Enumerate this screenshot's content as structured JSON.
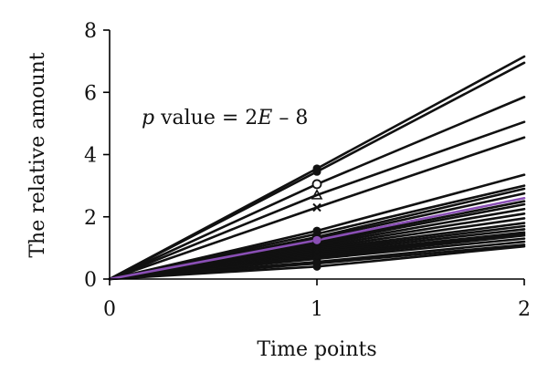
{
  "chart_data": {
    "type": "line",
    "title": "",
    "xlabel": "Time points",
    "ylabel": "The relative amount",
    "annotation": {
      "p_italic": "p",
      "rest": " value = 2",
      "e_italic": "E",
      "tail": " – 8"
    },
    "x": [
      0,
      1,
      2
    ],
    "xlim": [
      0,
      2
    ],
    "ylim": [
      0,
      8
    ],
    "xticks": [
      "0",
      "1",
      "2"
    ],
    "yticks": [
      "0",
      "2",
      "4",
      "6",
      "8"
    ],
    "grid": false,
    "colors": {
      "default": "#111111",
      "highlight": "#8a4fb5",
      "axis": "#000000"
    },
    "series": [
      {
        "values": [
          0,
          3.55,
          7.15
        ],
        "marker": "circle"
      },
      {
        "values": [
          0,
          3.45,
          6.95
        ],
        "marker": "circle"
      },
      {
        "values": [
          0,
          3.05,
          5.85
        ],
        "marker": "open-circle"
      },
      {
        "values": [
          0,
          2.7,
          5.05
        ],
        "marker": "triangle"
      },
      {
        "values": [
          0,
          2.3,
          4.55
        ],
        "marker": "x"
      },
      {
        "values": [
          0,
          1.55,
          3.35
        ],
        "marker": "circle"
      },
      {
        "values": [
          0,
          1.45,
          3.0
        ],
        "marker": "triangle"
      },
      {
        "values": [
          0,
          1.35,
          2.9
        ],
        "marker": "x"
      },
      {
        "values": [
          0,
          1.3,
          2.75
        ],
        "marker": "circle"
      },
      {
        "values": [
          0,
          1.25,
          2.6
        ],
        "marker": "circle",
        "highlight": true
      },
      {
        "values": [
          0,
          1.2,
          2.5
        ],
        "marker": "circle"
      },
      {
        "values": [
          0,
          1.15,
          2.4
        ],
        "marker": "circle"
      },
      {
        "values": [
          0,
          1.1,
          2.25
        ],
        "marker": "circle"
      },
      {
        "values": [
          0,
          1.05,
          2.1
        ],
        "marker": "circle"
      },
      {
        "values": [
          0,
          1.0,
          1.95
        ],
        "marker": "circle"
      },
      {
        "values": [
          0,
          0.95,
          1.8
        ],
        "marker": "circle"
      },
      {
        "values": [
          0,
          0.9,
          1.7
        ],
        "marker": "circle"
      },
      {
        "values": [
          0,
          0.85,
          1.6
        ],
        "marker": "circle"
      },
      {
        "values": [
          0,
          0.8,
          1.5
        ],
        "marker": "circle"
      },
      {
        "values": [
          0,
          0.75,
          1.45
        ],
        "marker": "circle"
      },
      {
        "values": [
          0,
          0.7,
          1.4
        ],
        "marker": "circle"
      },
      {
        "values": [
          0,
          0.65,
          1.3
        ],
        "marker": "circle"
      },
      {
        "values": [
          0,
          0.55,
          1.2
        ],
        "marker": "circle"
      },
      {
        "values": [
          0,
          0.5,
          1.1
        ],
        "marker": "circle"
      },
      {
        "values": [
          0,
          0.4,
          1.05
        ],
        "marker": "circle"
      }
    ]
  }
}
